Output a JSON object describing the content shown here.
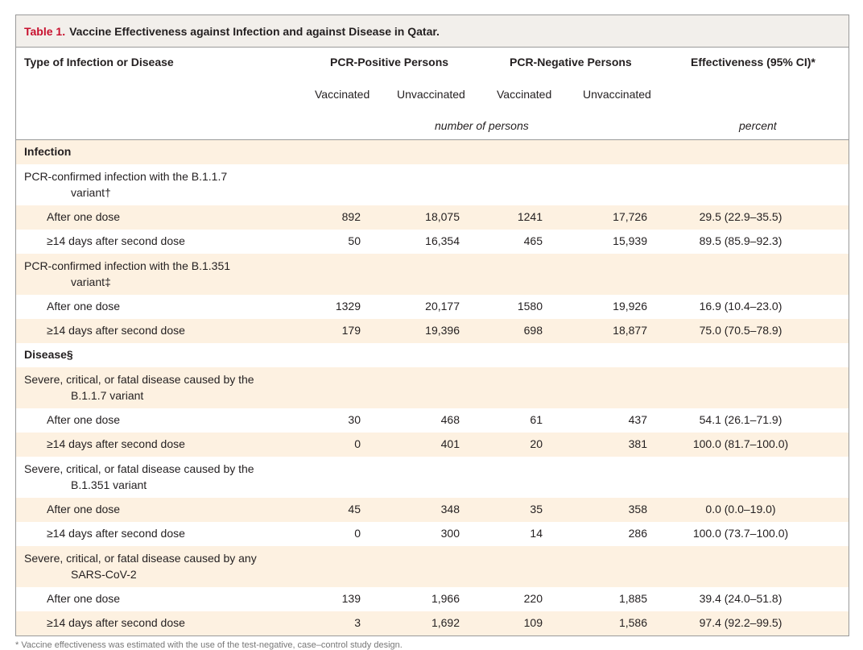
{
  "table": {
    "label": "Table 1.",
    "title": "Vaccine Effectiveness against Infection and against Disease in Qatar.",
    "headers": {
      "type": "Type of Infection or Disease",
      "pcr_positive": "PCR-Positive Persons",
      "pcr_negative": "PCR-Negative Persons",
      "effectiveness": "Effectiveness (95% CI)*",
      "vaccinated_pos": "Vaccinated",
      "unvaccinated_pos": "Unvaccinated",
      "vaccinated_neg": "Vaccinated",
      "unvaccinated_neg": "Unvaccinated",
      "unit_number": "number of persons",
      "unit_percent": "percent"
    },
    "sections": {
      "infection": "Infection",
      "disease": "Disease§"
    },
    "groups": [
      {
        "label_line1": "PCR-confirmed infection with the B.1.1.7",
        "label_line2": "variant†",
        "rows": [
          {
            "label": "After one dose",
            "vp": "892",
            "uvp": "18,075",
            "vn": "1241",
            "uvn": "17,726",
            "eff": "29.5 (22.9–35.5)"
          },
          {
            "label": "≥14 days after second dose",
            "vp": "50",
            "uvp": "16,354",
            "vn": "465",
            "uvn": "15,939",
            "eff": "89.5 (85.9–92.3)"
          }
        ]
      },
      {
        "label_line1": "PCR-confirmed infection with the B.1.351",
        "label_line2": "variant‡",
        "rows": [
          {
            "label": "After one dose",
            "vp": "1329",
            "uvp": "20,177",
            "vn": "1580",
            "uvn": "19,926",
            "eff": "16.9 (10.4–23.0)"
          },
          {
            "label": "≥14 days after second dose",
            "vp": "179",
            "uvp": "19,396",
            "vn": "698",
            "uvn": "18,877",
            "eff": "75.0 (70.5–78.9)"
          }
        ]
      },
      {
        "label_line1": "Severe, critical, or fatal disease caused by the",
        "label_line2": "B.1.1.7 variant",
        "rows": [
          {
            "label": "After one dose",
            "vp": "30",
            "uvp": "468",
            "vn": "61",
            "uvn": "437",
            "eff": "54.1 (26.1–71.9)"
          },
          {
            "label": "≥14 days after second dose",
            "vp": "0",
            "uvp": "401",
            "vn": "20",
            "uvn": "381",
            "eff": "100.0 (81.7–100.0)"
          }
        ]
      },
      {
        "label_line1": "Severe, critical, or fatal disease caused by the",
        "label_line2": "B.1.351 variant",
        "rows": [
          {
            "label": "After one dose",
            "vp": "45",
            "uvp": "348",
            "vn": "35",
            "uvn": "358",
            "eff": "0.0 (0.0–19.0)"
          },
          {
            "label": "≥14 days after second dose",
            "vp": "0",
            "uvp": "300",
            "vn": "14",
            "uvn": "286",
            "eff": "100.0 (73.7–100.0)"
          }
        ]
      },
      {
        "label_line1": "Severe, critical, or fatal disease caused by any",
        "label_line2": "SARS-CoV-2",
        "rows": [
          {
            "label": "After one dose",
            "vp": "139",
            "uvp": "1,966",
            "vn": "220",
            "uvn": "1,885",
            "eff": "39.4 (24.0–51.8)"
          },
          {
            "label": "≥14 days after second dose",
            "vp": "3",
            "uvp": "1,692",
            "vn": "109",
            "uvn": "1,586",
            "eff": "97.4 (92.2–99.5)"
          }
        ]
      }
    ],
    "footnote": "* Vaccine effectiveness was estimated with the use of the test-negative, case–control study design."
  }
}
